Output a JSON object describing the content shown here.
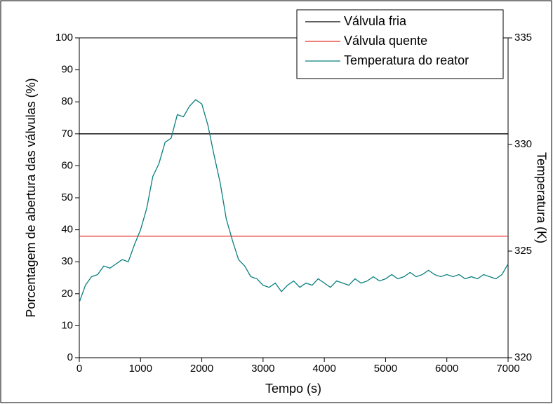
{
  "chart_data": {
    "type": "line",
    "xlabel": "Tempo (s)",
    "ylabel": "Porcentagem de abertura das válvulas (%)",
    "y2label": "Temperatura (K)",
    "xlim": [
      0,
      7000
    ],
    "xticks": [
      0,
      1000,
      2000,
      3000,
      4000,
      5000,
      6000,
      7000
    ],
    "ylim": [
      0,
      100
    ],
    "yticks": [
      0,
      10,
      20,
      30,
      40,
      50,
      60,
      70,
      80,
      90,
      100
    ],
    "y2lim": [
      320,
      335
    ],
    "y2ticks": [
      320,
      325,
      330,
      335
    ],
    "legend": "upper right",
    "series": [
      {
        "name": "Válvula fria",
        "color": "#000000",
        "x": [
          0,
          7000
        ],
        "values": [
          70,
          70
        ]
      },
      {
        "name": "Válvula quente",
        "color": "#e8312a",
        "x": [
          0,
          7000
        ],
        "values": [
          38,
          38
        ]
      },
      {
        "name": "Temperatura do reator",
        "color": "#0a7f7f",
        "axis": "y2",
        "x": [
          0,
          100,
          200,
          300,
          400,
          500,
          600,
          700,
          800,
          900,
          1000,
          1100,
          1200,
          1300,
          1400,
          1500,
          1600,
          1700,
          1800,
          1900,
          2000,
          2100,
          2200,
          2300,
          2400,
          2500,
          2600,
          2700,
          2800,
          2900,
          3000,
          3100,
          3200,
          3300,
          3400,
          3500,
          3600,
          3700,
          3800,
          3900,
          4000,
          4100,
          4200,
          4300,
          4400,
          4500,
          4600,
          4700,
          4800,
          4900,
          5000,
          5100,
          5200,
          5300,
          5400,
          5500,
          5600,
          5700,
          5800,
          5900,
          6000,
          6100,
          6200,
          6300,
          6400,
          6500,
          6600,
          6700,
          6800,
          6900,
          7000
        ],
        "values": [
          322.6,
          323.4,
          323.8,
          323.9,
          324.3,
          324.2,
          324.4,
          324.6,
          324.5,
          325.3,
          326.0,
          327.0,
          328.5,
          329.1,
          330.1,
          330.3,
          331.4,
          331.3,
          331.8,
          332.1,
          331.9,
          330.9,
          329.5,
          328.2,
          326.5,
          325.5,
          324.6,
          324.3,
          323.8,
          323.7,
          323.4,
          323.3,
          323.5,
          323.1,
          323.4,
          323.6,
          323.3,
          323.5,
          323.4,
          323.7,
          323.5,
          323.3,
          323.6,
          323.5,
          323.4,
          323.7,
          323.5,
          323.6,
          323.8,
          323.6,
          323.7,
          323.9,
          323.7,
          323.8,
          324.0,
          323.8,
          323.9,
          324.1,
          323.9,
          323.8,
          323.9,
          323.8,
          323.9,
          323.7,
          323.8,
          323.7,
          323.9,
          323.8,
          323.7,
          323.9,
          324.4
        ]
      }
    ]
  }
}
